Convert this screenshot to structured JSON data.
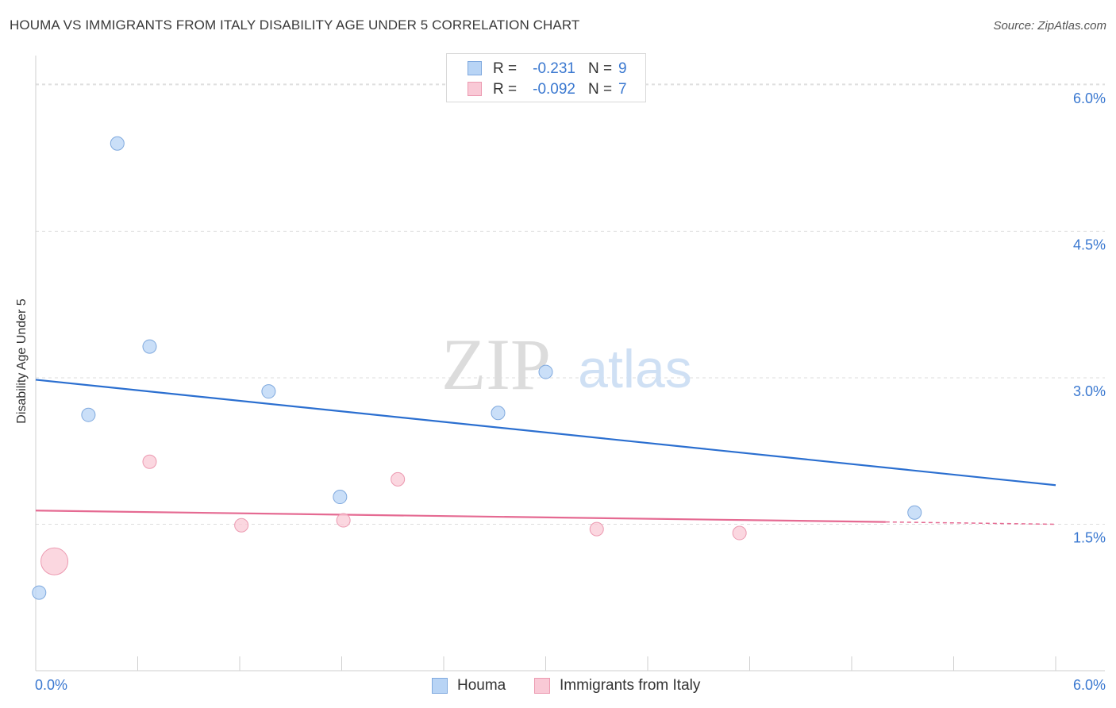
{
  "title": "HOUMA VS IMMIGRANTS FROM ITALY DISABILITY AGE UNDER 5 CORRELATION CHART",
  "source": "Source: ZipAtlas.com",
  "watermark": {
    "zip": "ZIP",
    "atlas": "atlas"
  },
  "colors": {
    "blue_fill": "#b8d4f5",
    "blue_stroke": "#7fa9de",
    "blue_line": "#2b6fd0",
    "pink_fill": "#f9c9d6",
    "pink_stroke": "#ec9ab1",
    "pink_line": "#e56a92",
    "tick_text": "#3a78d0",
    "grid": "#dddddd"
  },
  "legend_top": {
    "rows": [
      {
        "series": "Houma",
        "r_label": "R =",
        "r_value": "-0.231",
        "n_label": "N =",
        "n_value": "9"
      },
      {
        "series": "Immigrants from Italy",
        "r_label": "R =",
        "r_value": "-0.092",
        "n_label": "N =",
        "n_value": "7"
      }
    ]
  },
  "legend_bottom": [
    "Houma",
    "Immigrants from Italy"
  ],
  "chart_data": {
    "type": "scatter",
    "title": "HOUMA VS IMMIGRANTS FROM ITALY DISABILITY AGE UNDER 5 CORRELATION CHART",
    "xlabel": "",
    "ylabel": "Disability Age Under 5",
    "xlim": [
      0,
      6.0
    ],
    "ylim": [
      0,
      6.3
    ],
    "x_tick_labels": [
      {
        "value": 0.0,
        "label": "0.0%"
      },
      {
        "value": 6.0,
        "label": "6.0%"
      }
    ],
    "y_tick_labels": [
      {
        "value": 6.0,
        "label": "6.0%"
      },
      {
        "value": 4.5,
        "label": "4.5%"
      },
      {
        "value": 3.0,
        "label": "3.0%"
      },
      {
        "value": 1.5,
        "label": "1.5%"
      }
    ],
    "series": [
      {
        "name": "Houma",
        "color": "blue",
        "points": [
          {
            "x": 0.02,
            "y": 0.8,
            "size": 1
          },
          {
            "x": 0.31,
            "y": 2.62,
            "size": 1
          },
          {
            "x": 0.48,
            "y": 5.4,
            "size": 1
          },
          {
            "x": 0.67,
            "y": 3.32,
            "size": 1
          },
          {
            "x": 1.37,
            "y": 2.86,
            "size": 1
          },
          {
            "x": 1.79,
            "y": 1.78,
            "size": 1
          },
          {
            "x": 2.72,
            "y": 2.64,
            "size": 1
          },
          {
            "x": 3.0,
            "y": 3.06,
            "size": 1
          },
          {
            "x": 5.17,
            "y": 1.62,
            "size": 1
          }
        ],
        "trend": {
          "x0": 0.0,
          "y0": 2.98,
          "x1": 6.0,
          "y1": 1.9,
          "dashed_from": null
        }
      },
      {
        "name": "Immigrants from Italy",
        "color": "pink",
        "points": [
          {
            "x": 0.11,
            "y": 1.12,
            "size": 3
          },
          {
            "x": 0.67,
            "y": 2.14,
            "size": 1
          },
          {
            "x": 1.21,
            "y": 1.49,
            "size": 1
          },
          {
            "x": 1.81,
            "y": 1.54,
            "size": 1
          },
          {
            "x": 2.13,
            "y": 1.96,
            "size": 1
          },
          {
            "x": 3.3,
            "y": 1.45,
            "size": 1
          },
          {
            "x": 4.14,
            "y": 1.41,
            "size": 1
          }
        ],
        "trend": {
          "x0": 0.0,
          "y0": 1.64,
          "x1": 6.0,
          "y1": 1.5,
          "dashed_from": 5.0
        }
      }
    ]
  }
}
